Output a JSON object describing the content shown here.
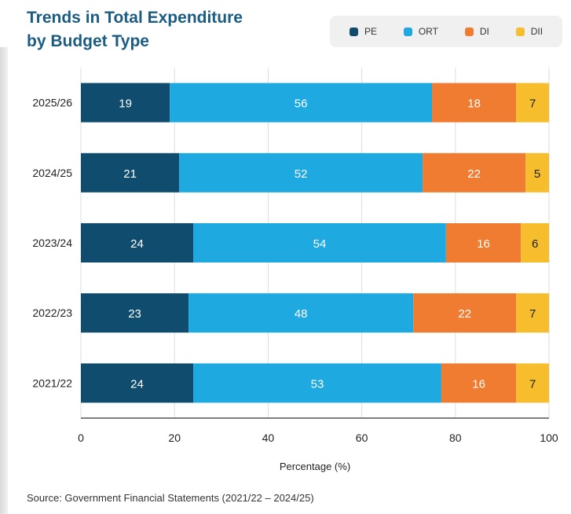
{
  "title_line1": "Trends in Total Expenditure",
  "title_line2": "by Budget Type",
  "source": "Source: Government Financial Statements (2021/22 – 2024/25)",
  "legend": [
    {
      "label": "PE",
      "color": "#0f4c6e"
    },
    {
      "label": "ORT",
      "color": "#1ea9e1"
    },
    {
      "label": "DI",
      "color": "#f07c32"
    },
    {
      "label": "DII",
      "color": "#f6be2c"
    }
  ],
  "chart_data": {
    "type": "bar",
    "orientation": "horizontal",
    "stacked": true,
    "title": "Trends in Total Expenditure by Budget Type",
    "xlabel": "Percentage (%)",
    "ylabel": "",
    "xlim": [
      0,
      100
    ],
    "xticks": [
      0,
      20,
      40,
      60,
      80,
      100
    ],
    "grid": true,
    "legend_position": "top-right",
    "categories": [
      "2025/26",
      "2024/25",
      "2023/24",
      "2022/23",
      "2021/22"
    ],
    "series": [
      {
        "name": "PE",
        "color": "#0f4c6e",
        "label_color": "#ffffff",
        "values": [
          19,
          21,
          24,
          23,
          24
        ]
      },
      {
        "name": "ORT",
        "color": "#1ea9e1",
        "label_color": "#ffffff",
        "values": [
          56,
          52,
          54,
          48,
          53
        ]
      },
      {
        "name": "DI",
        "color": "#f07c32",
        "label_color": "#ffffff",
        "values": [
          18,
          22,
          16,
          22,
          16
        ]
      },
      {
        "name": "DII",
        "color": "#f6be2c",
        "label_color": "#222222",
        "values": [
          7,
          5,
          6,
          7,
          7
        ]
      }
    ]
  }
}
